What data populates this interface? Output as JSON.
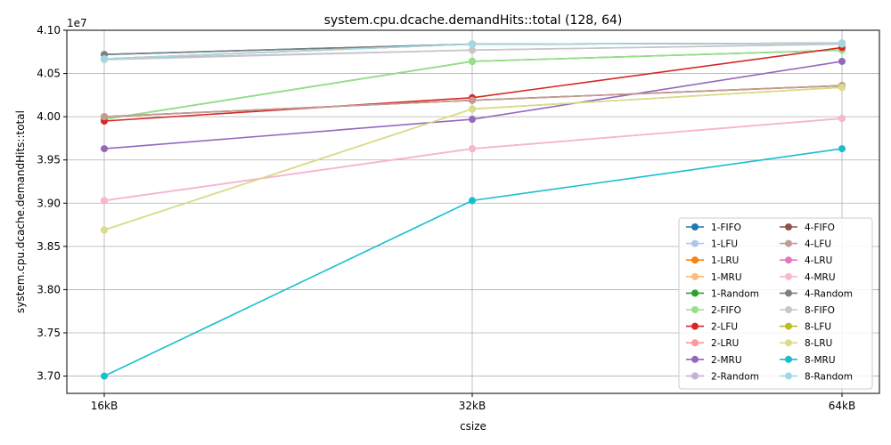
{
  "chart_data": {
    "type": "line",
    "title": "system.cpu.dcache.demandHits::total (128, 64)",
    "xlabel": "csize",
    "ylabel": "system.cpu.dcache.demandHits::total",
    "y_offset_label": "1e7",
    "categories": [
      "16kB",
      "32kB",
      "64kB"
    ],
    "ylim": [
      3.68,
      4.1
    ],
    "yticks": [
      "3.70",
      "3.75",
      "3.80",
      "3.85",
      "3.90",
      "3.95",
      "4.00",
      "4.05",
      "4.10"
    ],
    "grid": true,
    "legend_position": "lower right",
    "series": [
      {
        "name": "1-FIFO",
        "color": "#1f77b4",
        "values": [
          4.072,
          4.084,
          4.085
        ]
      },
      {
        "name": "1-LFU",
        "color": "#aec7e8",
        "values": [
          4.067,
          4.084,
          4.085
        ]
      },
      {
        "name": "1-LRU",
        "color": "#ff7f0e",
        "values": [
          4.067,
          4.084,
          4.085
        ]
      },
      {
        "name": "1-MRU",
        "color": "#ffbb78",
        "values": [
          4.067,
          4.084,
          4.085
        ]
      },
      {
        "name": "1-Random",
        "color": "#2ca02c",
        "values": [
          3.997,
          4.064,
          4.077
        ]
      },
      {
        "name": "2-FIFO",
        "color": "#98df8a",
        "values": [
          3.997,
          4.064,
          4.077
        ]
      },
      {
        "name": "2-LFU",
        "color": "#d62728",
        "values": [
          3.995,
          4.022,
          4.08
        ]
      },
      {
        "name": "2-LRU",
        "color": "#ff9896",
        "values": [
          4.0,
          4.019,
          4.036
        ]
      },
      {
        "name": "2-MRU",
        "color": "#9467bd",
        "values": [
          3.963,
          3.997,
          4.064
        ]
      },
      {
        "name": "2-Random",
        "color": "#c5b0d5",
        "values": [
          4.067,
          4.077,
          4.084
        ]
      },
      {
        "name": "4-FIFO",
        "color": "#8c564b",
        "values": [
          4.0,
          4.019,
          4.036
        ]
      },
      {
        "name": "4-LFU",
        "color": "#c49c94",
        "values": [
          4.0,
          4.019,
          4.036
        ]
      },
      {
        "name": "4-LRU",
        "color": "#e377c2",
        "values": [
          3.903,
          3.963,
          3.998
        ]
      },
      {
        "name": "4-MRU",
        "color": "#f7b6d2",
        "values": [
          3.903,
          3.963,
          3.998
        ]
      },
      {
        "name": "4-Random",
        "color": "#7f7f7f",
        "values": [
          4.072,
          4.084,
          4.085
        ]
      },
      {
        "name": "8-FIFO",
        "color": "#c7c7c7",
        "values": [
          4.066,
          4.077,
          4.084
        ]
      },
      {
        "name": "8-LFU",
        "color": "#bcbd22",
        "values": [
          3.869,
          4.009,
          4.034
        ]
      },
      {
        "name": "8-LRU",
        "color": "#dbdb8d",
        "values": [
          3.869,
          4.009,
          4.034
        ]
      },
      {
        "name": "8-MRU",
        "color": "#17becf",
        "values": [
          3.7,
          3.903,
          3.963
        ]
      },
      {
        "name": "8-Random",
        "color": "#9edae5",
        "values": [
          4.067,
          4.084,
          4.085
        ]
      }
    ]
  }
}
